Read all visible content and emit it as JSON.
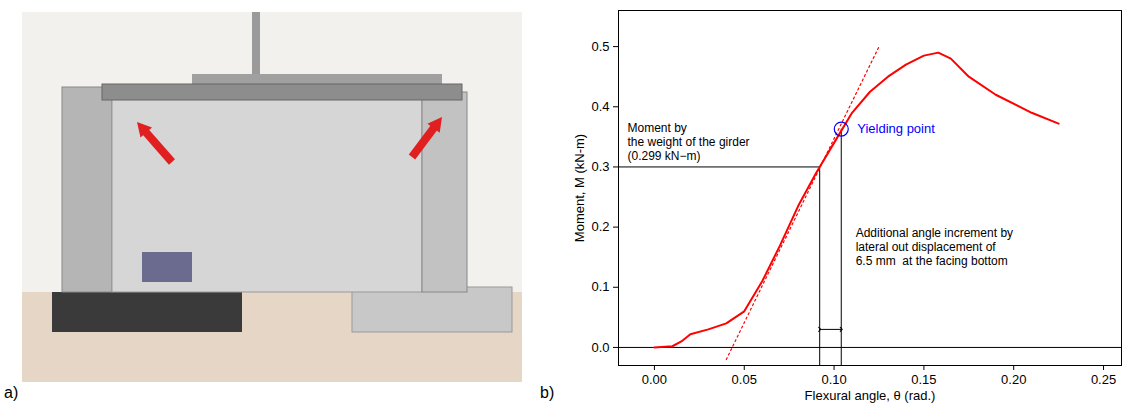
{
  "panel_labels": [
    "a)",
    "b)"
  ],
  "chart_data": {
    "type": "line",
    "x_label": "Flexural angle, θ (rad.)",
    "y_label": "Moment, M (kN-m)",
    "xlim": [
      -0.02,
      0.26
    ],
    "ylim": [
      -0.03,
      0.56
    ],
    "xticks": [
      {
        "value": 0,
        "label": "0.00"
      },
      {
        "value": 0.05,
        "label": "0.05"
      },
      {
        "value": 0.1,
        "label": "0.10"
      },
      {
        "value": 0.15,
        "label": "0.15"
      },
      {
        "value": 0.2,
        "label": "0.20"
      },
      {
        "value": 0.25,
        "label": "0.25"
      }
    ],
    "yticks": [
      {
        "value": 0,
        "label": "0.0"
      },
      {
        "value": 0.1,
        "label": "0.1"
      },
      {
        "value": 0.2,
        "label": "0.2"
      },
      {
        "value": 0.3,
        "label": "0.3"
      },
      {
        "value": 0.4,
        "label": "0.4"
      },
      {
        "value": 0.5,
        "label": "0.5"
      }
    ],
    "grid": false,
    "series": [
      {
        "color": "#ff0000",
        "line_style": "solid",
        "x": [
          0,
          0.01,
          0.015,
          0.02,
          0.03,
          0.04,
          0.05,
          0.06,
          0.07,
          0.08,
          0.09,
          0.1,
          0.11,
          0.12,
          0.13,
          0.14,
          0.15,
          0.158,
          0.165,
          0.175,
          0.19,
          0.21,
          0.225
        ],
        "values": [
          0,
          0.002,
          0.01,
          0.022,
          0.03,
          0.04,
          0.06,
          0.11,
          0.17,
          0.235,
          0.29,
          0.34,
          0.39,
          0.425,
          0.45,
          0.47,
          0.485,
          0.49,
          0.48,
          0.45,
          0.42,
          0.39,
          0.372
        ]
      },
      {
        "color": "#ff0000",
        "line_style": "dotted",
        "x": [
          0.04,
          0.125
        ],
        "values": [
          -0.02,
          0.5
        ]
      }
    ],
    "reference_lines": [
      {
        "x": [
          -0.02,
          0.26
        ],
        "y": [
          0,
          0
        ]
      },
      {
        "x": [
          -0.02,
          0.092
        ],
        "y": [
          0.3,
          0.3
        ]
      },
      {
        "x": [
          0.092,
          0.092
        ],
        "y": [
          -0.03,
          0.3
        ]
      },
      {
        "x": [
          0.104,
          0.104
        ],
        "y": [
          -0.03,
          0.363
        ]
      }
    ],
    "span_arrow": {
      "x": [
        0.092,
        0.104
      ],
      "y": 0.03
    },
    "marker_point": {
      "x": 0.104,
      "y": 0.363,
      "color": "#0000ff",
      "label": "Yielding point"
    },
    "annotations": [
      {
        "text": "Moment by\nthe weight of the girder\n(0.299 kN−m)",
        "x": -0.015,
        "y": 0.312
      },
      {
        "text": "Additional angle increment by\nlateral out displacement of\n6.5 mm  at the facing bottom",
        "x": 0.112,
        "y": 0.2
      }
    ]
  }
}
